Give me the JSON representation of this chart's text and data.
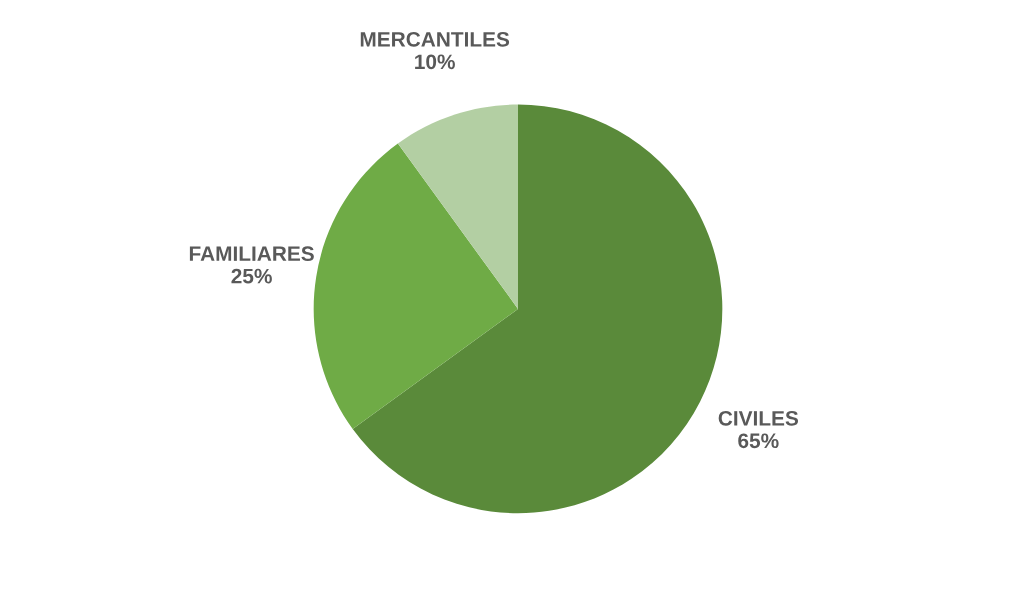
{
  "chart_data": {
    "type": "pie",
    "categories": [
      "CIVILES",
      "FAMILIARES",
      "MERCANTILES"
    ],
    "values": [
      65,
      25,
      10
    ],
    "colors": [
      "#5a8a3a",
      "#6fab46",
      "#b3cfa3"
    ],
    "value_labels": [
      "65%",
      "25%",
      "10%"
    ],
    "legend": false
  }
}
